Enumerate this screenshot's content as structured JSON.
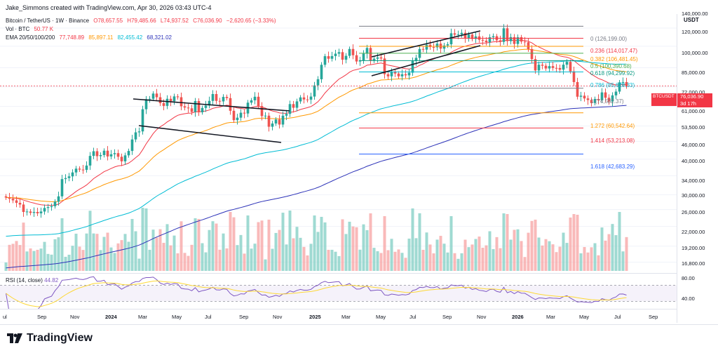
{
  "header": {
    "caption": "Jake_Simmons created with TradingView.com, Apr 30, 2026 03:43 UTC-4",
    "currency": "USDT"
  },
  "legend": {
    "symbol": "Bitcoin / TetherUS · 1W · Binance",
    "open": "O78,657.55",
    "high": "H79,485.66",
    "low": "L74,937.52",
    "close": "C76,036.90",
    "change": "−2,620.65 (−3.33%)",
    "vol_label": "Vol · BTC",
    "vol_value": "50.77 K",
    "ema_label": "EMA 20/50/100/200",
    "ema20": "77,748.89",
    "ema50": "85,897.11",
    "ema100": "82,455.42",
    "ema200": "68,321.02"
  },
  "price_axis": [
    "140,000.00",
    "120,000.00",
    "100,000.00",
    "85,000.00",
    "72,000.00",
    "61,000.00",
    "53,500.00",
    "46,000.00",
    "40,000.00",
    "34,000.00",
    "30,000.00",
    "26,000.00",
    "22,000.00",
    "19,200.00",
    "16,800.00"
  ],
  "price_tag": {
    "symbol": "BTCUSDT",
    "price": "76,036.90",
    "countdown": "3d 17h"
  },
  "fib_levels": [
    {
      "label": "0 (126,199.00)",
      "color": "#787b86"
    },
    {
      "label": "0.236 (114,017.47)",
      "color": "#f23645"
    },
    {
      "label": "0.382 (106,481.45)",
      "color": "#ff9800"
    },
    {
      "label": "0.5 (100,390.68)",
      "color": "#4caf50"
    },
    {
      "label": "0.618 (94,299.92)",
      "color": "#089981"
    },
    {
      "label": "0.786 (85,628.33)",
      "color": "#00bcd4"
    },
    {
      "label": "1 (74,582.37)",
      "color": "#787b86"
    },
    {
      "label": "1.272 (60,542.64)",
      "color": "#ff9800"
    },
    {
      "label": "1.414 (53,213.08)",
      "color": "#f23645"
    },
    {
      "label": "1.618 (42,683.29)",
      "color": "#2962ff"
    }
  ],
  "rsi": {
    "label": "RSI (14, close)",
    "value": "44.82",
    "axis": [
      "80.00",
      "40.00"
    ]
  },
  "time_axis": [
    {
      "label": "ul",
      "bold": false
    },
    {
      "label": "Sep",
      "bold": false
    },
    {
      "label": "Nov",
      "bold": false
    },
    {
      "label": "2024",
      "bold": true
    },
    {
      "label": "Mar",
      "bold": false
    },
    {
      "label": "May",
      "bold": false
    },
    {
      "label": "Jul",
      "bold": false
    },
    {
      "label": "Sep",
      "bold": false
    },
    {
      "label": "Nov",
      "bold": false
    },
    {
      "label": "2025",
      "bold": true
    },
    {
      "label": "Mar",
      "bold": false
    },
    {
      "label": "May",
      "bold": false
    },
    {
      "label": "Jul",
      "bold": false
    },
    {
      "label": "Sep",
      "bold": false
    },
    {
      "label": "Nov",
      "bold": false
    },
    {
      "label": "2026",
      "bold": true
    },
    {
      "label": "Mar",
      "bold": false
    },
    {
      "label": "May",
      "bold": false
    },
    {
      "label": "Jul",
      "bold": false
    },
    {
      "label": "Sep",
      "bold": false
    }
  ],
  "brand": {
    "name": "TradingView"
  },
  "colors": {
    "up": "#26a69a",
    "down": "#ef5350",
    "up_vol": "#7fcdc3",
    "down_vol": "#f7a1a1"
  },
  "chart_data": {
    "type": "candlestick",
    "weekly_close": [
      29500,
      29200,
      28800,
      28200,
      27800,
      26100,
      26200,
      25900,
      26100,
      25800,
      26200,
      27000,
      27200,
      27400,
      28500,
      29800,
      34500,
      34800,
      35300,
      36500,
      37700,
      37400,
      37300,
      38700,
      42000,
      43700,
      41900,
      42300,
      43900,
      41800,
      42600,
      43000,
      41700,
      40100,
      42200,
      43800,
      48300,
      51300,
      51700,
      62400,
      68000,
      68200,
      71300,
      69100,
      65700,
      64200,
      68200,
      66800,
      69600,
      69100,
      64000,
      63300,
      62900,
      61000,
      66900,
      60800,
      63100,
      64400,
      67000,
      71000,
      67000,
      66700,
      69300,
      68600,
      61600,
      56900,
      58100,
      60600,
      60200,
      66000,
      67300,
      69400,
      64100,
      58900,
      59100,
      53800,
      55300,
      57200,
      54800,
      59100,
      60000,
      65200,
      63200,
      66700,
      69000,
      67800,
      67700,
      69500,
      76400,
      80500,
      91000,
      97900,
      95800,
      98000,
      100000,
      101300,
      95000,
      98200,
      104100,
      98700,
      93600,
      94300,
      100000,
      105000,
      94200,
      95800,
      96900,
      96000,
      84000,
      82500,
      86000,
      84500,
      82500,
      84000,
      83200,
      85100,
      94000,
      96500,
      104100,
      103500,
      107900,
      105800,
      105500,
      108900,
      104400,
      107200,
      108300,
      118900,
      117500,
      117700,
      119400,
      114200,
      117600,
      113300,
      115800,
      112500,
      111700,
      110200,
      115000,
      116000,
      112000,
      110500,
      124000,
      111200,
      115100,
      108600,
      115000,
      110800,
      110200,
      104000,
      95500,
      86700,
      91100,
      90300,
      88200,
      90000,
      88600,
      88500,
      87300,
      91100,
      93300,
      86100,
      78600,
      69400,
      70000,
      68400,
      67500,
      65800,
      68100,
      67300,
      72000,
      68800,
      66600,
      70200,
      72500,
      78400,
      78600,
      76000
    ],
    "ema_series": [
      "EMA 20",
      "EMA 50",
      "EMA 100",
      "EMA 200"
    ],
    "fib_retracement": [
      126199,
      114017.47,
      106481.45,
      100390.68,
      94299.92,
      85628.33,
      74582.37,
      60542.64,
      53213.08,
      42683.29
    ],
    "rsi_last": 44.82,
    "yticks": [
      140000,
      120000,
      100000,
      85000,
      72000,
      61000,
      53500,
      46000,
      40000,
      34000,
      30000,
      26000,
      22000,
      19200,
      16800
    ]
  }
}
